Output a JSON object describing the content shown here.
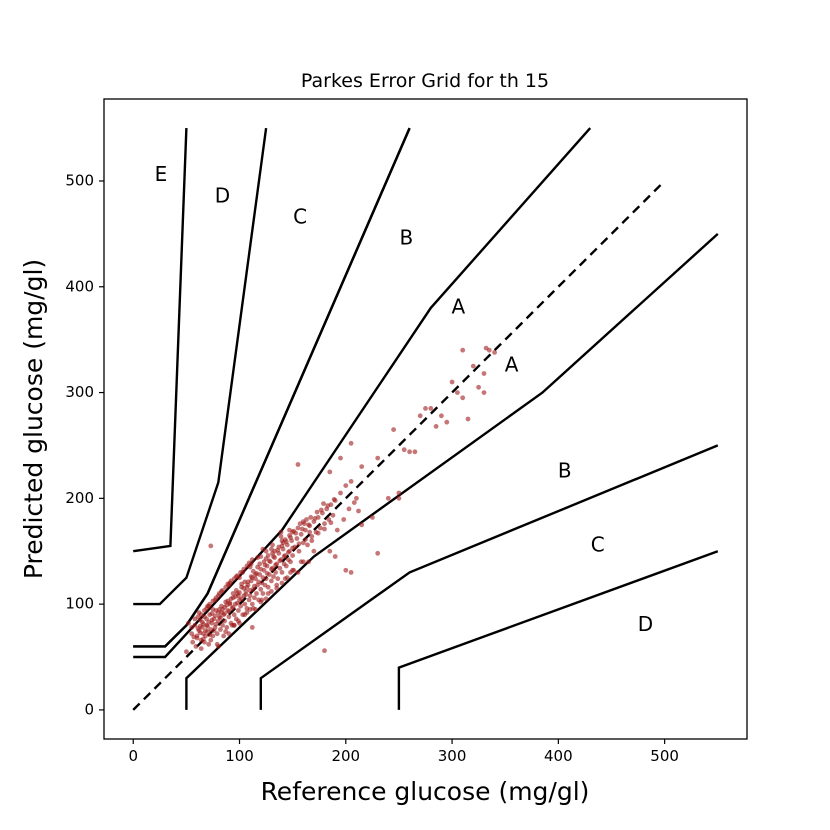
{
  "chart_data": {
    "type": "scatter",
    "title": "Parkes Error Grid for th 15",
    "xlabel": "Reference glucose (mg/gl)",
    "ylabel": "Predicted glucose (mg/gl)",
    "xlim": [
      -27.5,
      577.5
    ],
    "ylim": [
      -27.5,
      577.5
    ],
    "xticks": [
      0,
      100,
      200,
      300,
      400,
      500
    ],
    "yticks": [
      0,
      100,
      200,
      300,
      400,
      500
    ],
    "grid": false,
    "marker_color": "#a01a1a",
    "identity_line": {
      "x": [
        0,
        500
      ],
      "y": [
        0,
        500
      ],
      "style": "dashed"
    },
    "zone_boundaries": [
      {
        "x": [
          0,
          35,
          50,
          50
        ],
        "y": [
          150,
          155,
          550,
          550
        ]
      },
      {
        "x": [
          0,
          25,
          50,
          80,
          125,
          125
        ],
        "y": [
          100,
          100,
          125,
          215,
          550,
          550
        ]
      },
      {
        "x": [
          0,
          30,
          50,
          70,
          260
        ],
        "y": [
          60,
          60,
          80,
          110,
          550
        ]
      },
      {
        "x": [
          0,
          30,
          50,
          70,
          260
        ],
        "y": [
          60,
          60,
          80,
          110,
          550
        ]
      },
      {
        "x": [
          0,
          30,
          140,
          280,
          430
        ],
        "y": [
          50,
          50,
          170,
          380,
          550
        ]
      },
      {
        "x": [
          50,
          50,
          170,
          385,
          550
        ],
        "y": [
          0,
          30,
          145,
          300,
          450
        ]
      },
      {
        "x": [
          120,
          120,
          260,
          550
        ],
        "y": [
          0,
          30,
          130,
          250
        ]
      },
      {
        "x": [
          250,
          250,
          550
        ],
        "y": [
          0,
          40,
          150
        ]
      }
    ],
    "zone_labels": [
      {
        "text": "E",
        "x": 26,
        "y": 505
      },
      {
        "text": "D",
        "x": 84,
        "y": 485
      },
      {
        "text": "C",
        "x": 157,
        "y": 465
      },
      {
        "text": "B",
        "x": 257,
        "y": 445
      },
      {
        "text": "A",
        "x": 306,
        "y": 380
      },
      {
        "text": "A",
        "x": 356,
        "y": 325
      },
      {
        "text": "B",
        "x": 406,
        "y": 225
      },
      {
        "text": "C",
        "x": 437,
        "y": 155
      },
      {
        "text": "D",
        "x": 482,
        "y": 80
      }
    ],
    "points": [
      [
        55,
        72
      ],
      [
        58,
        80
      ],
      [
        60,
        68
      ],
      [
        62,
        75
      ],
      [
        63,
        85
      ],
      [
        64,
        66
      ],
      [
        65,
        78
      ],
      [
        66,
        72
      ],
      [
        67,
        88
      ],
      [
        68,
        70
      ],
      [
        69,
        80
      ],
      [
        70,
        74
      ],
      [
        71,
        62
      ],
      [
        72,
        90
      ],
      [
        73,
        76
      ],
      [
        74,
        82
      ],
      [
        75,
        70
      ],
      [
        76,
        86
      ],
      [
        77,
        78
      ],
      [
        78,
        94
      ],
      [
        79,
        72
      ],
      [
        80,
        84
      ],
      [
        81,
        88
      ],
      [
        82,
        76
      ],
      [
        83,
        98
      ],
      [
        84,
        80
      ],
      [
        85,
        90
      ],
      [
        86,
        84
      ],
      [
        87,
        102
      ],
      [
        88,
        78
      ],
      [
        89,
        94
      ],
      [
        90,
        88
      ],
      [
        91,
        100
      ],
      [
        92,
        82
      ],
      [
        93,
        96
      ],
      [
        94,
        106
      ],
      [
        95,
        90
      ],
      [
        96,
        100
      ],
      [
        97,
        86
      ],
      [
        98,
        110
      ],
      [
        99,
        94
      ],
      [
        100,
        104
      ],
      [
        101,
        98
      ],
      [
        102,
        116
      ],
      [
        103,
        90
      ],
      [
        104,
        108
      ],
      [
        105,
        100
      ],
      [
        106,
        112
      ],
      [
        107,
        96
      ],
      [
        108,
        118
      ],
      [
        109,
        104
      ],
      [
        110,
        108
      ],
      [
        111,
        122
      ],
      [
        112,
        100
      ],
      [
        113,
        114
      ],
      [
        114,
        106
      ],
      [
        115,
        124
      ],
      [
        116,
        110
      ],
      [
        117,
        118
      ],
      [
        118,
        104
      ],
      [
        119,
        128
      ],
      [
        120,
        114
      ],
      [
        121,
        120
      ],
      [
        122,
        110
      ],
      [
        123,
        132
      ],
      [
        124,
        118
      ],
      [
        125,
        124
      ],
      [
        126,
        136
      ],
      [
        127,
        116
      ],
      [
        128,
        128
      ],
      [
        129,
        140
      ],
      [
        130,
        122
      ],
      [
        131,
        134
      ],
      [
        132,
        126
      ],
      [
        133,
        144
      ],
      [
        134,
        130
      ],
      [
        135,
        138
      ],
      [
        136,
        124
      ],
      [
        137,
        148
      ],
      [
        138,
        134
      ],
      [
        139,
        142
      ],
      [
        140,
        130
      ],
      [
        141,
        152
      ],
      [
        142,
        138
      ],
      [
        143,
        146
      ],
      [
        144,
        136
      ],
      [
        145,
        156
      ],
      [
        146,
        142
      ],
      [
        147,
        150
      ],
      [
        148,
        140
      ],
      [
        149,
        160
      ],
      [
        150,
        146
      ],
      [
        152,
        154
      ],
      [
        154,
        162
      ],
      [
        156,
        150
      ],
      [
        158,
        166
      ],
      [
        160,
        158
      ],
      [
        162,
        170
      ],
      [
        164,
        156
      ],
      [
        166,
        174
      ],
      [
        168,
        164
      ],
      [
        170,
        178
      ],
      [
        172,
        168
      ],
      [
        174,
        182
      ],
      [
        176,
        172
      ],
      [
        178,
        186
      ],
      [
        180,
        176
      ],
      [
        182,
        190
      ],
      [
        184,
        180
      ],
      [
        186,
        194
      ],
      [
        188,
        184
      ],
      [
        190,
        198
      ],
      [
        192,
        170
      ],
      [
        195,
        205
      ],
      [
        198,
        180
      ],
      [
        200,
        212
      ],
      [
        203,
        190
      ],
      [
        205,
        216
      ],
      [
        208,
        196
      ],
      [
        212,
        188
      ],
      [
        60,
        70
      ],
      [
        61,
        77
      ],
      [
        63,
        73
      ],
      [
        65,
        83
      ],
      [
        66,
        67
      ],
      [
        68,
        75
      ],
      [
        70,
        79
      ],
      [
        72,
        71
      ],
      [
        74,
        85
      ],
      [
        76,
        75
      ],
      [
        78,
        81
      ],
      [
        80,
        92
      ],
      [
        82,
        87
      ],
      [
        84,
        95
      ],
      [
        86,
        91
      ],
      [
        88,
        99
      ],
      [
        90,
        93
      ],
      [
        92,
        105
      ],
      [
        94,
        97
      ],
      [
        96,
        107
      ],
      [
        98,
        101
      ],
      [
        100,
        111
      ],
      [
        102,
        105
      ],
      [
        104,
        115
      ],
      [
        106,
        109
      ],
      [
        108,
        121
      ],
      [
        110,
        113
      ],
      [
        112,
        125
      ],
      [
        114,
        117
      ],
      [
        116,
        129
      ],
      [
        118,
        121
      ],
      [
        120,
        133
      ],
      [
        122,
        125
      ],
      [
        124,
        137
      ],
      [
        126,
        129
      ],
      [
        128,
        141
      ],
      [
        130,
        133
      ],
      [
        132,
        145
      ],
      [
        134,
        137
      ],
      [
        136,
        151
      ],
      [
        138,
        141
      ],
      [
        140,
        155
      ],
      [
        142,
        145
      ],
      [
        144,
        159
      ],
      [
        146,
        149
      ],
      [
        148,
        163
      ],
      [
        150,
        153
      ],
      [
        153,
        167
      ],
      [
        156,
        157
      ],
      [
        159,
        171
      ],
      [
        162,
        161
      ],
      [
        165,
        175
      ],
      [
        168,
        160
      ],
      [
        171,
        181
      ],
      [
        174,
        167
      ],
      [
        177,
        189
      ],
      [
        180,
        171
      ],
      [
        183,
        193
      ],
      [
        186,
        177
      ],
      [
        189,
        199
      ],
      [
        75,
        95
      ],
      [
        85,
        70
      ],
      [
        95,
        80
      ],
      [
        105,
        90
      ],
      [
        115,
        95
      ],
      [
        125,
        105
      ],
      [
        135,
        115
      ],
      [
        145,
        125
      ],
      [
        155,
        130
      ],
      [
        165,
        140
      ],
      [
        80,
        60
      ],
      [
        90,
        72
      ],
      [
        100,
        82
      ],
      [
        110,
        95
      ],
      [
        120,
        102
      ],
      [
        130,
        112
      ],
      [
        140,
        120
      ],
      [
        150,
        132
      ],
      [
        160,
        140
      ],
      [
        170,
        150
      ],
      [
        70,
        98
      ],
      [
        80,
        108
      ],
      [
        90,
        118
      ],
      [
        100,
        125
      ],
      [
        110,
        135
      ],
      [
        120,
        145
      ],
      [
        130,
        152
      ],
      [
        140,
        160
      ],
      [
        150,
        168
      ],
      [
        160,
        178
      ],
      [
        56,
        64
      ],
      [
        59,
        60
      ],
      [
        62,
        92
      ],
      [
        64,
        58
      ],
      [
        67,
        64
      ],
      [
        71,
        98
      ],
      [
        73,
        66
      ],
      [
        77,
        104
      ],
      [
        79,
        62
      ],
      [
        83,
        112
      ],
      [
        87,
        74
      ],
      [
        91,
        120
      ],
      [
        93,
        80
      ],
      [
        97,
        126
      ],
      [
        99,
        84
      ],
      [
        103,
        130
      ],
      [
        107,
        92
      ],
      [
        111,
        138
      ],
      [
        113,
        96
      ],
      [
        117,
        144
      ],
      [
        121,
        104
      ],
      [
        125,
        150
      ],
      [
        127,
        110
      ],
      [
        131,
        156
      ],
      [
        135,
        118
      ],
      [
        139,
        164
      ],
      [
        143,
        124
      ],
      [
        147,
        170
      ],
      [
        151,
        132
      ],
      [
        157,
        176
      ],
      [
        50,
        55
      ],
      [
        52,
        82
      ],
      [
        73,
        155
      ],
      [
        95,
        80
      ],
      [
        112,
        78
      ],
      [
        122,
        152
      ],
      [
        139,
        168
      ],
      [
        148,
        130
      ],
      [
        158,
        140
      ],
      [
        166,
        168
      ],
      [
        185,
        150
      ],
      [
        190,
        145
      ],
      [
        200,
        132
      ],
      [
        205,
        130
      ],
      [
        210,
        200
      ],
      [
        215,
        175
      ],
      [
        225,
        182
      ],
      [
        230,
        148
      ],
      [
        240,
        200
      ],
      [
        250,
        200
      ],
      [
        155,
        232
      ],
      [
        185,
        225
      ],
      [
        195,
        238
      ],
      [
        205,
        252
      ],
      [
        215,
        230
      ],
      [
        230,
        238
      ],
      [
        245,
        265
      ],
      [
        255,
        246
      ],
      [
        260,
        244
      ],
      [
        265,
        244
      ],
      [
        270,
        278
      ],
      [
        280,
        285
      ],
      [
        290,
        278
      ],
      [
        295,
        272
      ],
      [
        305,
        300
      ],
      [
        315,
        275
      ],
      [
        325,
        305
      ],
      [
        330,
        300
      ],
      [
        335,
        340
      ],
      [
        340,
        338
      ],
      [
        275,
        285
      ],
      [
        285,
        268
      ],
      [
        300,
        310
      ],
      [
        310,
        295
      ],
      [
        320,
        325
      ],
      [
        330,
        318
      ],
      [
        310,
        340
      ],
      [
        332,
        342
      ],
      [
        180,
        56
      ],
      [
        250,
        205
      ],
      [
        58,
        86
      ],
      [
        61,
        88
      ],
      [
        64,
        90
      ],
      [
        67,
        94
      ],
      [
        69,
        96
      ],
      [
        72,
        100
      ],
      [
        75,
        103
      ],
      [
        78,
        106
      ],
      [
        81,
        110
      ],
      [
        84,
        113
      ],
      [
        87,
        116
      ],
      [
        89,
        119
      ],
      [
        92,
        122
      ],
      [
        95,
        124
      ],
      [
        98,
        127
      ],
      [
        101,
        130
      ],
      [
        104,
        133
      ],
      [
        107,
        136
      ],
      [
        109,
        139
      ],
      [
        112,
        142
      ],
      [
        55,
        78
      ],
      [
        57,
        69
      ],
      [
        63,
        79
      ],
      [
        66,
        81
      ],
      [
        69,
        86
      ],
      [
        71,
        83
      ],
      [
        74,
        91
      ],
      [
        77,
        89
      ],
      [
        81,
        95
      ],
      [
        83,
        92
      ],
      [
        86,
        97
      ],
      [
        89,
        103
      ],
      [
        91,
        101
      ],
      [
        94,
        110
      ],
      [
        97,
        113
      ],
      [
        99,
        108
      ],
      [
        102,
        119
      ],
      [
        105,
        121
      ],
      [
        107,
        116
      ],
      [
        111,
        126
      ],
      [
        113,
        131
      ],
      [
        115,
        128
      ],
      [
        117,
        135
      ],
      [
        119,
        138
      ],
      [
        123,
        140
      ],
      [
        125,
        143
      ],
      [
        127,
        146
      ],
      [
        131,
        148
      ],
      [
        133,
        150
      ],
      [
        137,
        154
      ],
      [
        141,
        158
      ],
      [
        143,
        161
      ],
      [
        147,
        165
      ],
      [
        151,
        169
      ],
      [
        155,
        172
      ],
      [
        161,
        176
      ],
      [
        163,
        180
      ],
      [
        167,
        182
      ],
      [
        173,
        187
      ],
      [
        179,
        195
      ]
    ]
  }
}
